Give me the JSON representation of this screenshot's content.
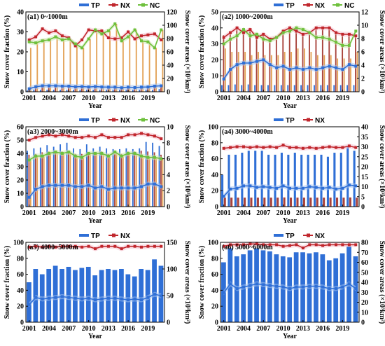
{
  "colors": {
    "tp": "#2f6fd6",
    "nx": "#c0262c",
    "nc": "#6ec03c",
    "band_tp": "#a9c6f2",
    "band_nx": "#f6c7d4",
    "band_nc": "#cde8b5",
    "bar_tp": "#2f6fd6",
    "bar_nx": "#a8433b",
    "bar_nc": "#e3a256"
  },
  "shared_text": {
    "x_title": "Year",
    "y_left_title": "Snow cover fraction (%)",
    "y_right_title": "Snow cover areas (×10³km²)",
    "x_tick_labels": [
      "2001",
      "2004",
      "2007",
      "2010",
      "2013",
      "2016",
      "2019"
    ]
  },
  "chart_data": [
    {
      "type": "bar+line",
      "title": "(a1) 0~1000m",
      "years": [
        2001,
        2002,
        2003,
        2004,
        2005,
        2006,
        2007,
        2008,
        2009,
        2010,
        2011,
        2012,
        2013,
        2014,
        2015,
        2016,
        2017,
        2018,
        2019,
        2020,
        2021
      ],
      "left_axis": {
        "title": "Snow cover fraction (%)",
        "ylim": [
          0,
          40
        ],
        "ticks": [
          0,
          10,
          20,
          30,
          40
        ]
      },
      "right_axis": {
        "title": "Snow cover areas (×10³km²)",
        "ylim": [
          0,
          120
        ],
        "ticks": [
          0,
          20,
          40,
          60,
          80,
          100,
          120
        ]
      },
      "legend": [
        "TP",
        "NX",
        "NC"
      ],
      "lines": [
        {
          "name": "TP",
          "color_key": "tp",
          "values": [
            1.5,
            2.5,
            3.0,
            3.0,
            3.0,
            2.8,
            2.8,
            2.5,
            2.6,
            2.4,
            2.6,
            2.4,
            2.3,
            2.3,
            2.0,
            2.3,
            2.1,
            2.3,
            2.4,
            2.8,
            3.0
          ]
        },
        {
          "name": "NX",
          "color_key": "nx",
          "values": [
            26,
            27.5,
            31.5,
            29.5,
            30.5,
            28,
            27,
            23,
            26,
            31,
            30.5,
            30.5,
            27,
            26.5,
            27,
            30,
            26.5,
            28,
            28.5,
            29,
            26
          ]
        },
        {
          "name": "NC",
          "color_key": "nc",
          "values": [
            25,
            24.5,
            25.5,
            26,
            27.5,
            26,
            26.5,
            24,
            22,
            26.5,
            31,
            29,
            30.5,
            34,
            25.5,
            27.5,
            31,
            25.5,
            25,
            22,
            31
          ]
        }
      ],
      "bars": [
        {
          "name": "TP",
          "color_key": "bar_tp",
          "values": [
            2,
            3,
            3,
            3,
            3,
            3,
            3,
            3,
            3,
            3,
            3,
            3,
            3,
            3,
            3,
            3,
            3,
            3,
            3,
            3,
            4
          ]
        },
        {
          "name": "NX",
          "color_key": "bar_nx",
          "values": [
            6,
            8,
            9,
            7,
            8,
            8,
            7,
            6,
            7,
            9,
            9,
            9,
            8,
            7,
            8,
            9,
            8,
            8,
            8,
            8,
            7
          ]
        },
        {
          "name": "NC",
          "color_key": "bar_nc",
          "values": [
            66,
            75,
            79,
            79,
            83,
            78,
            79,
            71,
            66,
            79,
            93,
            87,
            92,
            102,
            77,
            83,
            93,
            76,
            75,
            66,
            93
          ]
        }
      ],
      "has_nc": true
    },
    {
      "type": "bar+line",
      "title": "(a2) 1000~2000m",
      "years": [
        2001,
        2002,
        2003,
        2004,
        2005,
        2006,
        2007,
        2008,
        2009,
        2010,
        2011,
        2012,
        2013,
        2014,
        2015,
        2016,
        2017,
        2018,
        2019,
        2020,
        2021
      ],
      "left_axis": {
        "title": "Snow cover fraction (%)",
        "ylim": [
          0,
          50
        ],
        "ticks": [
          0,
          10,
          20,
          30,
          40,
          50
        ]
      },
      "right_axis": {
        "title": "Snow cover areas (×10³km²)",
        "ylim": [
          0,
          12
        ],
        "ticks": [
          0,
          2,
          4,
          6,
          8,
          10,
          12
        ]
      },
      "legend": [
        "TP",
        "NX",
        "NC"
      ],
      "lines": [
        {
          "name": "TP",
          "color_key": "tp",
          "values": [
            8,
            14,
            17,
            18,
            18,
            19,
            20,
            17,
            15,
            16,
            14,
            15,
            14,
            15,
            14,
            15,
            16,
            15,
            14,
            17,
            16
          ]
        },
        {
          "name": "NX",
          "color_key": "nx",
          "values": [
            34,
            37,
            40,
            37,
            39,
            34,
            36,
            33,
            34,
            38,
            40,
            38,
            36,
            37,
            40,
            40,
            40,
            37,
            36,
            36,
            35
          ]
        },
        {
          "name": "NC",
          "color_key": "nc",
          "values": [
            30,
            33,
            35,
            39,
            35,
            36,
            33,
            32,
            34,
            37,
            38,
            40,
            39,
            37,
            34,
            34,
            33,
            31,
            29,
            29,
            38
          ]
        }
      ],
      "bars": [
        {
          "name": "TP",
          "color_key": "bar_tp",
          "values": [
            1.0,
            1.0,
            1.1,
            1.0,
            1.1,
            1.0,
            1.0,
            1.0,
            1.0,
            1.0,
            1.0,
            1.0,
            1.0,
            1.0,
            1.0,
            1.0,
            1.0,
            1.0,
            1.0,
            1.0,
            1.0
          ]
        },
        {
          "name": "NX",
          "color_key": "bar_nx",
          "values": [
            8.5,
            9.0,
            9.6,
            9.0,
            9.4,
            8.4,
            8.8,
            8.0,
            8.2,
            9.2,
            9.6,
            9.2,
            8.7,
            9.0,
            9.6,
            9.7,
            9.6,
            8.9,
            8.7,
            8.7,
            8.4
          ]
        },
        {
          "name": "NC",
          "color_key": "bar_nc",
          "values": [
            6.5,
            6.0,
            6.0,
            6.0,
            5.5,
            6.0,
            5.5,
            5.5,
            5.5,
            6.0,
            6.0,
            6.5,
            6.5,
            6.0,
            5.5,
            5.5,
            5.5,
            5.0,
            5.0,
            5.0,
            6.0
          ]
        }
      ],
      "has_nc": true
    },
    {
      "type": "bar+line",
      "title": "(a3) 2000~3000m",
      "years": [
        2001,
        2002,
        2003,
        2004,
        2005,
        2006,
        2007,
        2008,
        2009,
        2010,
        2011,
        2012,
        2013,
        2014,
        2015,
        2016,
        2017,
        2018,
        2019,
        2020,
        2021
      ],
      "left_axis": {
        "title": "Snow cover fraction (%)",
        "ylim": [
          0,
          60
        ],
        "ticks": [
          0,
          10,
          20,
          30,
          40,
          50,
          60
        ]
      },
      "right_axis": {
        "title": "Snow cover areas (×10³km²)",
        "ylim": [
          0,
          10
        ],
        "ticks": [
          0,
          2,
          4,
          6,
          8,
          10
        ]
      },
      "legend": [
        "TP",
        "NX",
        "NC"
      ],
      "lines": [
        {
          "name": "TP",
          "color_key": "tp",
          "values": [
            7,
            13,
            15,
            16,
            16,
            16,
            16,
            15,
            15,
            16,
            14,
            15,
            13,
            14,
            14,
            14,
            14,
            15,
            17,
            17,
            15
          ]
        },
        {
          "name": "NX",
          "color_key": "nx",
          "values": [
            50,
            52,
            53,
            54,
            53,
            54,
            53,
            52,
            52,
            53,
            52,
            54,
            52,
            52,
            52,
            54,
            54,
            55,
            54,
            53,
            51
          ]
        },
        {
          "name": "NC",
          "color_key": "nc",
          "values": [
            35,
            38,
            38,
            40,
            41,
            40,
            41,
            38,
            37,
            40,
            40,
            40,
            38,
            41,
            38,
            40,
            40,
            38,
            37,
            37,
            36
          ]
        }
      ],
      "bars": [
        {
          "name": "TP",
          "color_key": "bar_tp",
          "values": [
            7.0,
            7.3,
            7.4,
            7.7,
            7.5,
            7.8,
            8.0,
            7.3,
            7.2,
            7.8,
            7.3,
            7.5,
            7.3,
            7.2,
            7.2,
            7.3,
            7.2,
            7.3,
            8.1,
            8.0,
            7.6
          ]
        },
        {
          "name": "NX",
          "color_key": "bar_nx",
          "values": [
            6.5,
            6.6,
            6.8,
            6.9,
            6.8,
            6.9,
            6.8,
            6.6,
            6.6,
            6.8,
            6.6,
            6.9,
            6.6,
            6.6,
            6.6,
            6.9,
            6.9,
            7.0,
            6.9,
            6.8,
            6.5
          ]
        },
        {
          "name": "NC",
          "color_key": "bar_nc",
          "values": [
            5.8,
            6.3,
            6.3,
            6.6,
            6.8,
            6.6,
            6.8,
            6.3,
            6.1,
            6.6,
            6.6,
            6.6,
            6.3,
            6.8,
            6.3,
            6.6,
            6.6,
            6.3,
            6.1,
            6.1,
            6.0
          ]
        }
      ],
      "has_nc": true
    },
    {
      "type": "bar+line",
      "title": "(a4) 3000~4000m",
      "years": [
        2001,
        2002,
        2003,
        2004,
        2005,
        2006,
        2007,
        2008,
        2009,
        2010,
        2011,
        2012,
        2013,
        2014,
        2015,
        2016,
        2017,
        2018,
        2019,
        2020,
        2021
      ],
      "left_axis": {
        "title": "Snow cover fraction (%)",
        "ylim": [
          0,
          100
        ],
        "ticks": [
          0,
          20,
          40,
          60,
          80,
          100
        ]
      },
      "right_axis": {
        "title": "Snow cover areas (×10³km²)",
        "ylim": [
          0,
          40
        ],
        "ticks": [
          0,
          5,
          10,
          15,
          20,
          25,
          30,
          35,
          40
        ]
      },
      "legend": [
        "TP",
        "NX"
      ],
      "lines": [
        {
          "name": "TP",
          "color_key": "tp",
          "values": [
            13,
            22,
            23,
            26,
            26,
            24,
            25,
            24,
            23,
            26,
            23,
            23,
            23,
            25,
            24,
            23,
            24,
            22,
            23,
            27,
            26
          ]
        },
        {
          "name": "NX",
          "color_key": "nx",
          "values": [
            73,
            74,
            75,
            75,
            74,
            75,
            74,
            75,
            74,
            77,
            74,
            74,
            73,
            74,
            73,
            74,
            75,
            74,
            74,
            76,
            74
          ]
        }
      ],
      "bars": [
        {
          "name": "TP",
          "color_key": "bar_tp",
          "values": [
            16,
            26,
            26,
            27,
            28,
            28,
            28,
            26,
            26,
            27,
            26,
            27,
            26,
            26,
            26,
            26,
            25,
            27,
            27,
            30,
            28
          ]
        },
        {
          "name": "NX",
          "color_key": "bar_nx",
          "values": [
            4.5,
            4.5,
            4.5,
            4.5,
            4.5,
            4.5,
            4.5,
            4.5,
            4.5,
            4.6,
            4.5,
            4.5,
            4.5,
            4.5,
            4.5,
            4.5,
            4.5,
            4.5,
            4.5,
            4.6,
            4.5
          ]
        }
      ],
      "has_nc": false
    },
    {
      "type": "bar+line",
      "title": "(a5) 4000~5000m",
      "years": [
        2001,
        2002,
        2003,
        2004,
        2005,
        2006,
        2007,
        2008,
        2009,
        2010,
        2011,
        2012,
        2013,
        2014,
        2015,
        2016,
        2017,
        2018,
        2019,
        2020,
        2021
      ],
      "left_axis": {
        "title": "Snow cover fraction (%)",
        "ylim": [
          0,
          100
        ],
        "ticks": [
          0,
          20,
          40,
          60,
          80,
          100
        ]
      },
      "right_axis": {
        "title": "Snow cover areas (×10³km²)",
        "ylim": [
          0,
          150
        ],
        "ticks": [
          0,
          50,
          100,
          150
        ]
      },
      "legend": [
        "TP",
        "NX"
      ],
      "lines": [
        {
          "name": "TP",
          "color_key": "tp",
          "values": [
            22,
            31,
            29,
            30,
            31,
            32,
            31,
            30,
            29,
            30,
            28,
            29,
            30,
            30,
            29,
            28,
            29,
            28,
            31,
            35,
            33
          ]
        },
        {
          "name": "NX",
          "color_key": "nx",
          "values": [
            94,
            95,
            94,
            95,
            94,
            95,
            95,
            95,
            94,
            95,
            92,
            95,
            95,
            95,
            92,
            95,
            95,
            94,
            95,
            95,
            95
          ]
        }
      ],
      "bars": [
        {
          "name": "TP",
          "color_key": "bar_tp",
          "values": [
            75,
            100,
            90,
            100,
            106,
            100,
            104,
            98,
            102,
            104,
            88,
            98,
            100,
            98,
            100,
            90,
            86,
            100,
            98,
            118,
            106
          ]
        }
      ],
      "has_nc": false
    },
    {
      "type": "bar+line",
      "title": "(a6) 5000~6000m",
      "years": [
        2001,
        2002,
        2003,
        2004,
        2005,
        2006,
        2007,
        2008,
        2009,
        2010,
        2011,
        2012,
        2013,
        2014,
        2015,
        2016,
        2017,
        2018,
        2019,
        2020,
        2021
      ],
      "left_axis": {
        "title": "Snow cover fraction (%)",
        "ylim": [
          0,
          100
        ],
        "ticks": [
          0,
          20,
          40,
          60,
          80,
          100
        ]
      },
      "right_axis": {
        "title": "Snow cover areas (×10³km²)",
        "ylim": [
          0,
          80
        ],
        "ticks": [
          0,
          10,
          20,
          30,
          40,
          50,
          60,
          70,
          80
        ]
      },
      "legend": [
        "TP",
        "NX"
      ],
      "lines": [
        {
          "name": "TP",
          "color_key": "tp",
          "values": [
            37,
            48,
            42,
            44,
            46,
            48,
            47,
            46,
            45,
            44,
            42,
            44,
            44,
            45,
            45,
            44,
            42,
            42,
            44,
            48,
            42
          ]
        },
        {
          "name": "NX",
          "color_key": "nx",
          "values": [
            95,
            97,
            97,
            97,
            98,
            98,
            97,
            97,
            97,
            95,
            96,
            97,
            93,
            97,
            97,
            96,
            97,
            97,
            97,
            97,
            97
          ]
        }
      ],
      "bars": [
        {
          "name": "TP",
          "color_key": "bar_tp",
          "values": [
            60,
            74,
            66,
            68,
            72,
            74,
            72,
            71,
            68,
            66,
            65,
            70,
            70,
            69,
            70,
            68,
            62,
            64,
            69,
            76,
            66
          ]
        }
      ],
      "has_nc": false
    }
  ]
}
